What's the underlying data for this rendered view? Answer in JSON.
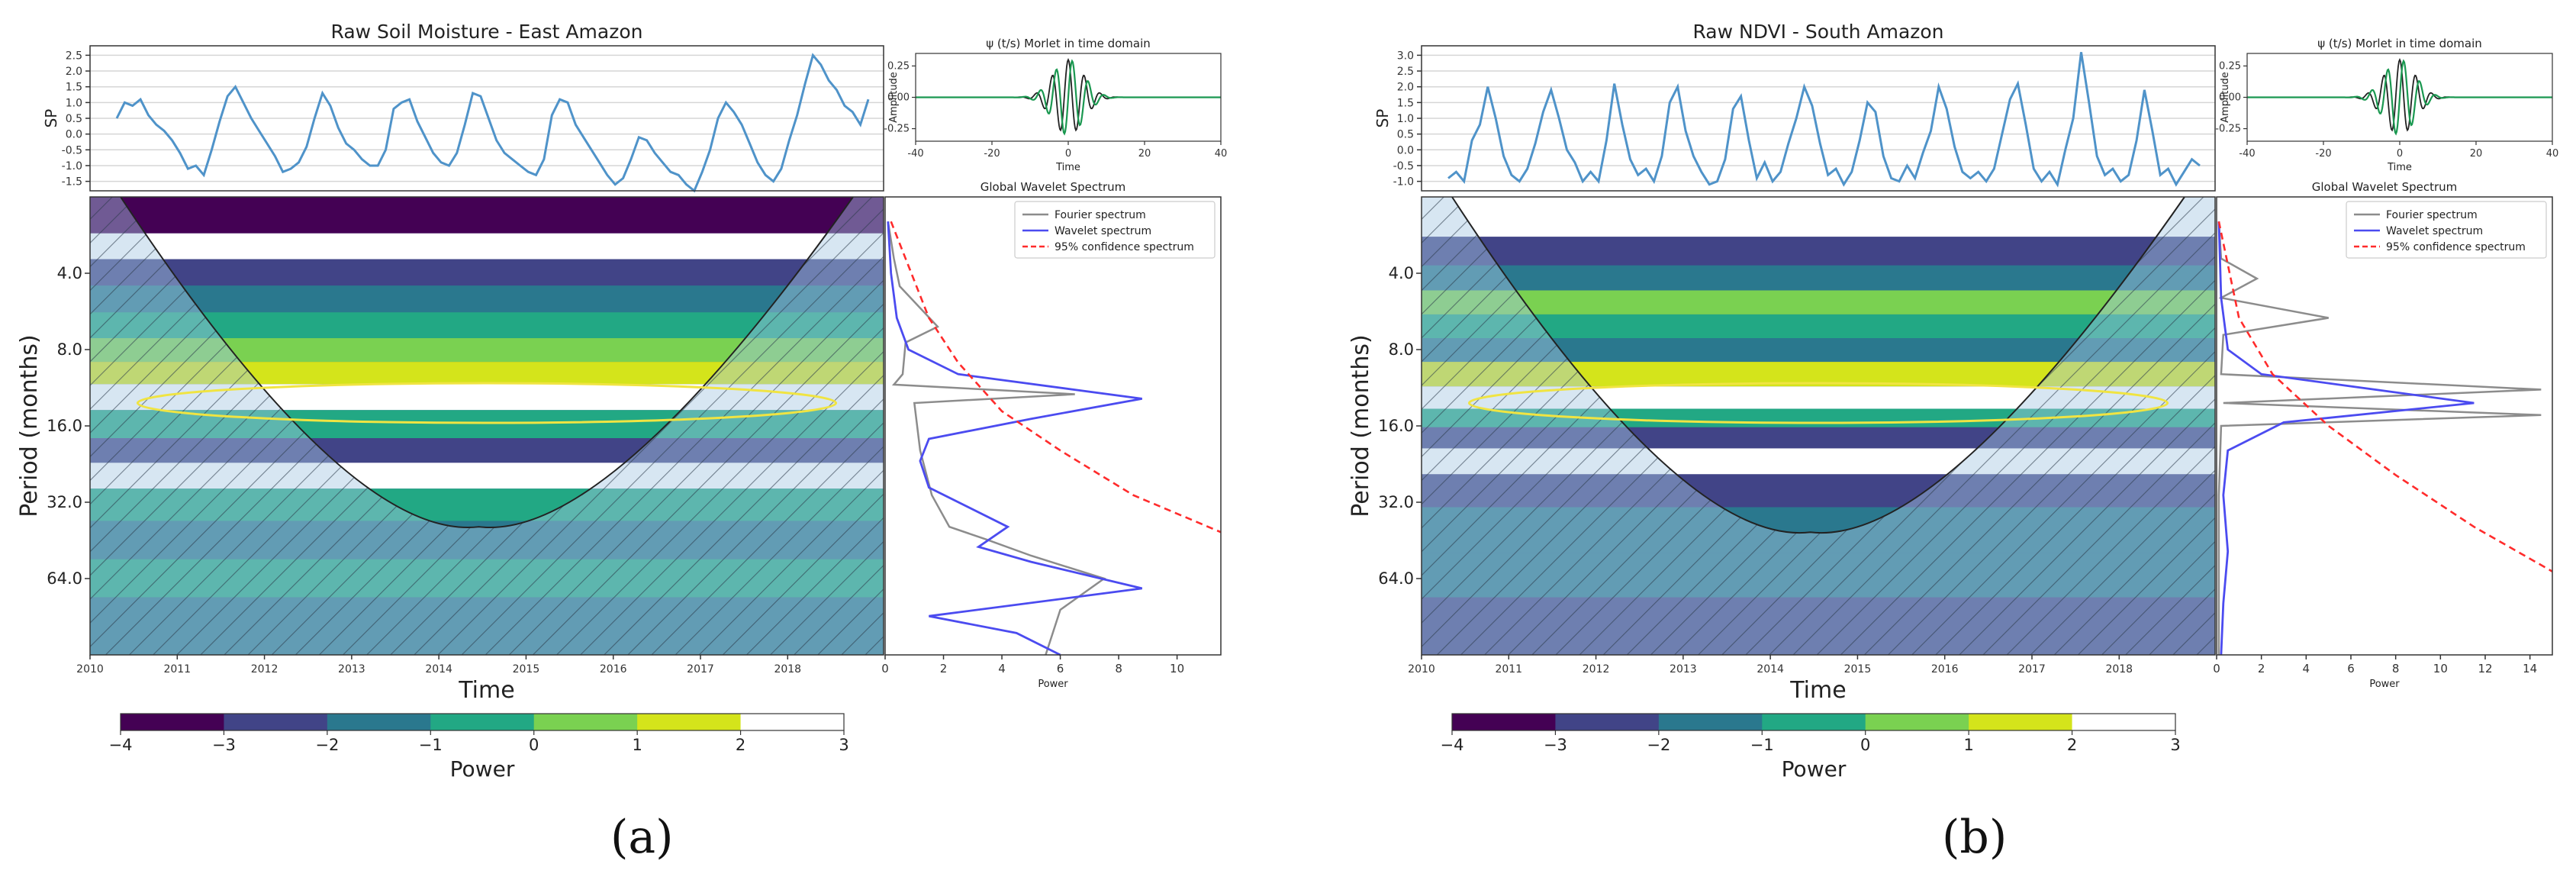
{
  "colors": {
    "cmap": [
      "#440154",
      "#414487",
      "#2a788e",
      "#22a884",
      "#7ad151",
      "#d4e41b",
      "#ffffff"
    ],
    "series_line": "#4f93c9",
    "fourier": "#8c8c8c",
    "wavelet_spec": "#4b4bf0",
    "confidence": "#ff2b2b",
    "coi_fill": "#a6c8e3",
    "sig_contour": "#f0e442",
    "wavelet_real": "#222222",
    "wavelet_imag": "#1a9850"
  },
  "panels": [
    {
      "id": "a",
      "sub_label": "(a)",
      "time_series": {
        "title": "Raw Soil Moisture - East Amazon",
        "ylabel": "SP",
        "yticks": [
          "2.5",
          "2.0",
          "1.5",
          "1.0",
          "0.5",
          "0.0",
          "-0.5",
          "-1.0",
          "-1.5"
        ],
        "ylim": [
          -1.8,
          2.8
        ],
        "values": [
          0.5,
          1.0,
          0.9,
          1.1,
          0.6,
          0.3,
          0.1,
          -0.2,
          -0.6,
          -1.1,
          -1.0,
          -1.3,
          -0.5,
          0.4,
          1.2,
          1.5,
          1.0,
          0.5,
          0.1,
          -0.3,
          -0.7,
          -1.2,
          -1.1,
          -0.9,
          -0.4,
          0.5,
          1.3,
          0.9,
          0.2,
          -0.3,
          -0.5,
          -0.8,
          -1.0,
          -1.0,
          -0.5,
          0.8,
          1.0,
          1.1,
          0.4,
          -0.1,
          -0.6,
          -0.9,
          -1.0,
          -0.6,
          0.3,
          1.3,
          1.2,
          0.5,
          -0.2,
          -0.6,
          -0.8,
          -1.0,
          -1.2,
          -1.3,
          -0.8,
          0.6,
          1.1,
          1.0,
          0.3,
          -0.1,
          -0.5,
          -0.9,
          -1.3,
          -1.6,
          -1.4,
          -0.8,
          -0.1,
          -0.2,
          -0.6,
          -0.9,
          -1.2,
          -1.3,
          -1.6,
          -1.8,
          -1.2,
          -0.5,
          0.5,
          1.0,
          0.7,
          0.3,
          -0.3,
          -0.9,
          -1.3,
          -1.5,
          -1.1,
          -0.2,
          0.6,
          1.6,
          2.5,
          2.2,
          1.7,
          1.4,
          0.9,
          0.7,
          0.3,
          1.1
        ]
      },
      "wavelet_inset": {
        "title": "ψ (t/s) Morlet in time domain",
        "ylabel": "Amplitude",
        "xlabel": "Time",
        "xticks": [
          "-40",
          "-20",
          "0",
          "20",
          "40"
        ],
        "yticks": [
          "0.25",
          "0.00",
          "-0.25"
        ],
        "xlim": [
          -40,
          40
        ],
        "ylim": [
          -0.35,
          0.35
        ]
      },
      "wavelet_power": {
        "xlabel": "Time",
        "ylabel": "Period (months)",
        "xticks": [
          "2010",
          "2011",
          "2012",
          "2013",
          "2014",
          "2015",
          "2016",
          "2017",
          "2018"
        ],
        "xlim": [
          2010,
          2019.1
        ],
        "yticks": [
          "4.0",
          "8.0",
          "16.0",
          "32.0",
          "64.0"
        ],
        "period_range": [
          2,
          128
        ],
        "coi_min_period": 40,
        "bands": [
          {
            "period": 2.5,
            "level": 0
          },
          {
            "period": 3.1,
            "level": 6
          },
          {
            "period": 4.0,
            "level": 1
          },
          {
            "period": 5.0,
            "level": 2
          },
          {
            "period": 6.5,
            "level": 3
          },
          {
            "period": 8.0,
            "level": 4
          },
          {
            "period": 10.0,
            "level": 5
          },
          {
            "period": 12.0,
            "level": 6
          },
          {
            "period": 16.0,
            "level": 3
          },
          {
            "period": 20.0,
            "level": 1
          },
          {
            "period": 25.0,
            "level": 6
          },
          {
            "period": 32.0,
            "level": 3
          },
          {
            "period": 45.0,
            "level": 2
          },
          {
            "period": 64.0,
            "level": 3
          },
          {
            "period": 90.0,
            "level": 2
          }
        ]
      },
      "global_spectrum": {
        "title": "Global Wavelet Spectrum",
        "legend": [
          "Fourier spectrum",
          "Wavelet spectrum",
          "95% confidence spectrum"
        ],
        "xlabel": "Power",
        "xticks": [
          "0",
          "2",
          "4",
          "6",
          "8",
          "10"
        ],
        "xlim": [
          0,
          11.5
        ],
        "fourier": [
          [
            0.1,
            2.5
          ],
          [
            0.3,
            3.5
          ],
          [
            0.5,
            4.5
          ],
          [
            1.8,
            6.5
          ],
          [
            0.7,
            7.5
          ],
          [
            0.6,
            10
          ],
          [
            0.3,
            11
          ],
          [
            6.5,
            12
          ],
          [
            1.0,
            13
          ],
          [
            1.2,
            20
          ],
          [
            1.6,
            30
          ],
          [
            2.2,
            40
          ],
          [
            3.5,
            45
          ],
          [
            5.0,
            52
          ],
          [
            7.5,
            64
          ],
          [
            6.0,
            85
          ],
          [
            5.5,
            128
          ]
        ],
        "wavelet": [
          [
            0.1,
            2.5
          ],
          [
            0.2,
            4
          ],
          [
            0.4,
            6
          ],
          [
            0.8,
            8
          ],
          [
            2.5,
            10
          ],
          [
            8.8,
            12.5
          ],
          [
            5.0,
            15
          ],
          [
            1.5,
            18
          ],
          [
            1.2,
            22
          ],
          [
            1.5,
            28
          ],
          [
            4.2,
            40
          ],
          [
            3.2,
            48
          ],
          [
            5.0,
            55
          ],
          [
            8.8,
            70
          ],
          [
            1.5,
            90
          ],
          [
            4.5,
            105
          ],
          [
            6.0,
            128
          ]
        ],
        "confidence": [
          [
            0.2,
            2.5
          ],
          [
            1.5,
            6
          ],
          [
            2.5,
            9
          ],
          [
            4.0,
            14
          ],
          [
            6.0,
            20
          ],
          [
            8.5,
            30
          ],
          [
            11.5,
            42
          ]
        ]
      },
      "colorbar": {
        "ticks": [
          "-4",
          "-3",
          "-2",
          "-1",
          "0",
          "1",
          "2",
          "3"
        ],
        "label": "Power"
      }
    },
    {
      "id": "b",
      "sub_label": "(b)",
      "time_series": {
        "title": "Raw NDVI - South Amazon",
        "ylabel": "SP",
        "yticks": [
          "3.0",
          "2.5",
          "2.0",
          "1.5",
          "1.0",
          "0.5",
          "0.0",
          "-0.5",
          "-1.0"
        ],
        "ylim": [
          -1.3,
          3.3
        ],
        "values": [
          -0.9,
          -0.7,
          -1.0,
          0.3,
          0.8,
          2.0,
          1.0,
          -0.2,
          -0.8,
          -1.0,
          -0.6,
          0.2,
          1.2,
          1.9,
          1.0,
          0.0,
          -0.4,
          -1.0,
          -0.7,
          -1.0,
          0.3,
          2.1,
          0.8,
          -0.3,
          -0.8,
          -0.6,
          -1.0,
          -0.2,
          1.5,
          2.0,
          0.6,
          -0.2,
          -0.7,
          -1.1,
          -1.0,
          -0.3,
          1.3,
          1.7,
          0.3,
          -0.9,
          -0.4,
          -1.0,
          -0.7,
          0.2,
          1.0,
          2.0,
          1.4,
          0.2,
          -0.8,
          -0.6,
          -1.1,
          -0.7,
          0.3,
          1.5,
          1.2,
          -0.2,
          -0.9,
          -1.0,
          -0.5,
          -0.9,
          -0.1,
          0.6,
          2.0,
          1.3,
          0.1,
          -0.7,
          -0.9,
          -0.7,
          -1.0,
          -0.6,
          0.5,
          1.6,
          2.1,
          0.8,
          -0.6,
          -1.0,
          -0.7,
          -1.1,
          0.0,
          1.0,
          3.1,
          1.5,
          -0.2,
          -0.8,
          -0.6,
          -1.0,
          -0.8,
          0.3,
          1.9,
          0.6,
          -0.8,
          -0.6,
          -1.1,
          -0.7,
          -0.3,
          -0.5
        ]
      },
      "wavelet_inset": {
        "title": "ψ (t/s) Morlet in time domain",
        "ylabel": "Amplitude",
        "xlabel": "Time",
        "xticks": [
          "-40",
          "-20",
          "0",
          "20",
          "40"
        ],
        "yticks": [
          "0.25",
          "0.00",
          "-0.25"
        ],
        "xlim": [
          -40,
          40
        ],
        "ylim": [
          -0.35,
          0.35
        ]
      },
      "wavelet_power": {
        "xlabel": "Time",
        "ylabel": "Period (months)",
        "xticks": [
          "2010",
          "2011",
          "2012",
          "2013",
          "2014",
          "2015",
          "2016",
          "2017",
          "2018"
        ],
        "xlim": [
          2010,
          2019.1
        ],
        "yticks": [
          "4.0",
          "8.0",
          "16.0",
          "32.0",
          "64.0"
        ],
        "period_range": [
          2,
          128
        ],
        "coi_min_period": 42,
        "bands": [
          {
            "period": 2.5,
            "level": 6
          },
          {
            "period": 3.3,
            "level": 1
          },
          {
            "period": 4.2,
            "level": 2
          },
          {
            "period": 5.2,
            "level": 4
          },
          {
            "period": 6.5,
            "level": 3
          },
          {
            "period": 8.0,
            "level": 2
          },
          {
            "period": 10.0,
            "level": 5
          },
          {
            "period": 12.5,
            "level": 6
          },
          {
            "period": 15.0,
            "level": 3
          },
          {
            "period": 17.5,
            "level": 1
          },
          {
            "period": 22.0,
            "level": 6
          },
          {
            "period": 28.0,
            "level": 1
          },
          {
            "period": 40.0,
            "level": 2
          },
          {
            "period": 64.0,
            "level": 2
          },
          {
            "period": 90.0,
            "level": 1
          }
        ]
      },
      "global_spectrum": {
        "title": "Global Wavelet Spectrum",
        "legend": [
          "Fourier spectrum",
          "Wavelet spectrum",
          "95% confidence spectrum"
        ],
        "xlabel": "Power",
        "xticks": [
          "0",
          "2",
          "4",
          "6",
          "8",
          "10",
          "12",
          "14"
        ],
        "xlim": [
          0,
          15
        ],
        "fourier": [
          [
            0.1,
            2.5
          ],
          [
            0.2,
            3.5
          ],
          [
            1.8,
            4.2
          ],
          [
            0.2,
            5
          ],
          [
            5.0,
            6
          ],
          [
            0.3,
            7
          ],
          [
            0.2,
            10
          ],
          [
            14.5,
            11.5
          ],
          [
            0.3,
            13
          ],
          [
            14.5,
            14.5
          ],
          [
            0.2,
            16
          ],
          [
            0.1,
            30
          ],
          [
            0.1,
            128
          ]
        ],
        "wavelet": [
          [
            0.1,
            2.5
          ],
          [
            0.2,
            5
          ],
          [
            0.5,
            8
          ],
          [
            2.0,
            10
          ],
          [
            11.5,
            13
          ],
          [
            3.0,
            15.5
          ],
          [
            0.5,
            20
          ],
          [
            0.3,
            30
          ],
          [
            0.5,
            50
          ],
          [
            0.3,
            80
          ],
          [
            0.2,
            128
          ]
        ],
        "confidence": [
          [
            0.1,
            2.5
          ],
          [
            1.0,
            6
          ],
          [
            2.5,
            10
          ],
          [
            5.0,
            16
          ],
          [
            8.0,
            25
          ],
          [
            11.5,
            40
          ],
          [
            15.0,
            60
          ]
        ]
      },
      "colorbar": {
        "ticks": [
          "-4",
          "-3",
          "-2",
          "-1",
          "0",
          "1",
          "2",
          "3"
        ],
        "label": "Power"
      }
    }
  ]
}
